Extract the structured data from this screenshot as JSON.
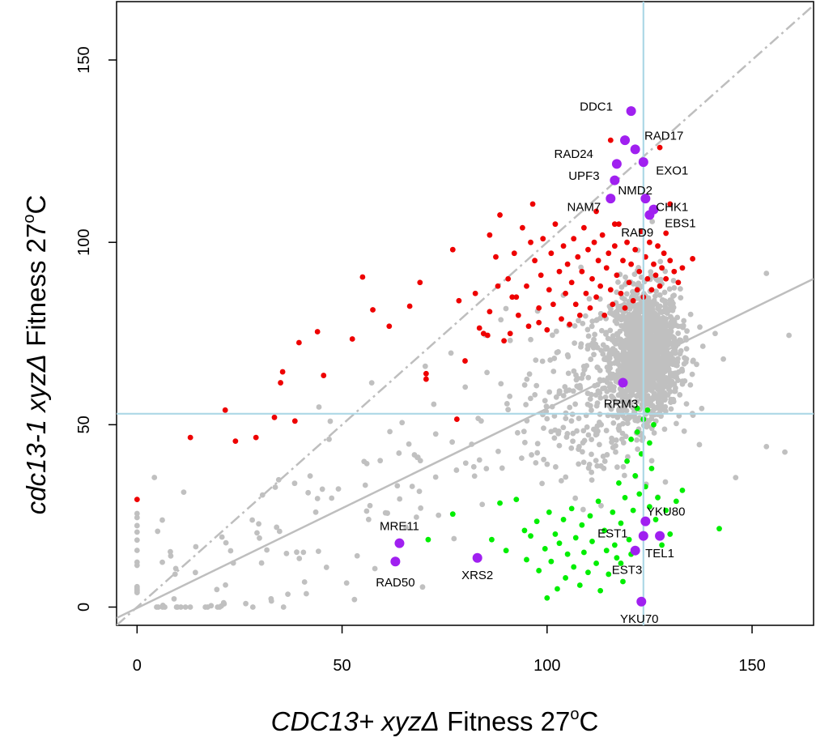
{
  "chart_data": {
    "type": "scatter",
    "xlabel": {
      "pre": "CDC13+ xyzΔ",
      "mid": " Fitness 27",
      "sup": "o",
      "post": "C"
    },
    "ylabel": {
      "pre": "cdc13-1 xyzΔ",
      "mid": " Fitness 27",
      "sup": "o",
      "post": "C"
    },
    "xlim": [
      -5,
      165
    ],
    "ylim": [
      -5,
      166
    ],
    "xticks": [
      "0",
      "50",
      "100",
      "150"
    ],
    "yticks": [
      "0",
      "50",
      "100",
      "150"
    ],
    "xtick_values": [
      0,
      50,
      100,
      150
    ],
    "ytick_values": [
      0,
      50,
      100,
      150
    ],
    "grid": false,
    "colors": {
      "background": "#c0c0c0",
      "suppressor": "#ee0000",
      "enhancer": "#00ee00",
      "highlight": "#a020f0",
      "reference_lines": "#add8e6",
      "fit_lines": "#bebebe"
    },
    "reference_lines": {
      "x": 123.5,
      "y": 53
    },
    "fit_line": {
      "x1": -5,
      "y1": -3,
      "x2": 165,
      "y2": 90
    },
    "identity_line": {
      "x1": -5,
      "y1": -5,
      "x2": 165,
      "y2": 165
    },
    "labeled_genes": [
      {
        "name": "DDC1",
        "x": 120.5,
        "y": 136,
        "lx": 112,
        "ly": 137
      },
      {
        "name": "RAD17",
        "x": 121.5,
        "y": 125.5,
        "lx": 128.5,
        "ly": 129
      },
      {
        "name": "RAD24",
        "x": 119,
        "y": 128,
        "lx": 106.5,
        "ly": 124
      },
      {
        "name": "EXO1",
        "x": 123.5,
        "y": 122,
        "lx": 130.5,
        "ly": 119.5
      },
      {
        "name": "UPF3",
        "x": 117,
        "y": 121.5,
        "lx": 109,
        "ly": 118
      },
      {
        "name": "NMD2",
        "x": 116.5,
        "y": 117,
        "lx": 121.5,
        "ly": 114
      },
      {
        "name": "NAM7",
        "x": 115.5,
        "y": 112,
        "lx": 109,
        "ly": 109.5
      },
      {
        "name": "CHK1",
        "x": 124,
        "y": 112,
        "lx": 130.5,
        "ly": 109.5
      },
      {
        "name": "EBS1",
        "x": 126,
        "y": 109,
        "lx": 132.5,
        "ly": 105
      },
      {
        "name": "RAD9",
        "x": 125,
        "y": 107.5,
        "lx": 122,
        "ly": 102.5
      },
      {
        "name": "RRM3",
        "x": 118.5,
        "y": 61.5,
        "lx": 118,
        "ly": 55.5
      },
      {
        "name": "YKU80",
        "x": 124,
        "y": 23.5,
        "lx": 129,
        "ly": 26
      },
      {
        "name": "EST1",
        "x": 123.5,
        "y": 19.5,
        "lx": 116,
        "ly": 20
      },
      {
        "name": "TEL1",
        "x": 127.5,
        "y": 19.5,
        "lx": 127.5,
        "ly": 14.5
      },
      {
        "name": "EST3",
        "x": 121.5,
        "y": 15.5,
        "lx": 119.5,
        "ly": 10
      },
      {
        "name": "YKU70",
        "x": 123,
        "y": 1.5,
        "lx": 122.5,
        "ly": -3.5
      },
      {
        "name": "MRE11",
        "x": 64,
        "y": 17.5,
        "lx": 64,
        "ly": 22
      },
      {
        "name": "RAD50",
        "x": 63,
        "y": 12.5,
        "lx": 63,
        "ly": 6.5
      },
      {
        "name": "XRS2",
        "x": 83,
        "y": 13.5,
        "lx": 83,
        "ly": 8.5
      }
    ],
    "suppressors": [
      [
        0,
        29.5
      ],
      [
        13,
        46.5
      ],
      [
        21.5,
        54
      ],
      [
        24,
        45.5
      ],
      [
        29,
        46.5
      ],
      [
        33.5,
        52
      ],
      [
        35.5,
        64.5
      ],
      [
        35,
        61.5
      ],
      [
        38.5,
        51
      ],
      [
        39.5,
        72.5
      ],
      [
        44,
        75.5
      ],
      [
        45.5,
        63.5
      ],
      [
        52.5,
        73.5
      ],
      [
        55,
        90.5
      ],
      [
        57.5,
        81.5
      ],
      [
        61.5,
        77
      ],
      [
        66.5,
        82.5
      ],
      [
        69,
        89
      ],
      [
        70.5,
        64
      ],
      [
        70.5,
        62.5
      ],
      [
        77,
        98
      ],
      [
        78,
        51.5
      ],
      [
        78.5,
        84
      ],
      [
        80,
        67.5
      ],
      [
        82.5,
        86
      ],
      [
        83.5,
        76.5
      ],
      [
        84.5,
        75
      ],
      [
        85.5,
        74.5
      ],
      [
        86,
        102
      ],
      [
        87.5,
        96
      ],
      [
        88.5,
        107.5
      ],
      [
        89.5,
        73
      ],
      [
        90.5,
        90
      ],
      [
        91.5,
        85
      ],
      [
        92,
        97
      ],
      [
        93,
        80
      ],
      [
        94,
        104
      ],
      [
        95,
        88
      ],
      [
        95.5,
        77
      ],
      [
        96.5,
        110.5
      ],
      [
        97,
        95
      ],
      [
        98,
        82
      ],
      [
        98.5,
        91
      ],
      [
        99,
        101
      ],
      [
        100,
        76
      ],
      [
        100.5,
        87
      ],
      [
        101,
        97
      ],
      [
        101.5,
        83
      ],
      [
        102,
        105
      ],
      [
        103,
        92
      ],
      [
        103.5,
        79
      ],
      [
        104,
        99
      ],
      [
        104.5,
        86
      ],
      [
        105,
        94
      ],
      [
        105.5,
        77.5
      ],
      [
        106,
        89
      ],
      [
        106.5,
        101
      ],
      [
        107,
        83
      ],
      [
        107.5,
        96
      ],
      [
        108,
        80
      ],
      [
        108.5,
        92
      ],
      [
        109,
        104
      ],
      [
        109.5,
        86
      ],
      [
        110,
        98
      ],
      [
        110.5,
        82
      ],
      [
        111,
        90
      ],
      [
        111.5,
        100
      ],
      [
        112,
        85
      ],
      [
        112.5,
        95
      ],
      [
        113,
        88
      ],
      [
        113.5,
        102
      ],
      [
        114,
        80
      ],
      [
        114.5,
        93
      ],
      [
        115,
        97
      ],
      [
        115.5,
        87
      ],
      [
        116,
        83
      ],
      [
        116.5,
        99
      ],
      [
        117,
        91
      ],
      [
        117.5,
        105
      ],
      [
        118,
        86
      ],
      [
        118.5,
        95
      ],
      [
        119,
        82
      ],
      [
        119.5,
        100
      ],
      [
        120,
        89
      ],
      [
        120.5,
        94
      ],
      [
        121,
        84
      ],
      [
        121.5,
        98
      ],
      [
        122,
        87
      ],
      [
        122.5,
        92
      ],
      [
        123,
        103
      ],
      [
        123.5,
        85
      ],
      [
        124,
        96
      ],
      [
        124.5,
        90
      ],
      [
        125,
        100
      ],
      [
        125.5,
        87
      ],
      [
        126,
        94
      ],
      [
        126.5,
        91
      ],
      [
        127,
        99
      ],
      [
        127.5,
        88
      ],
      [
        128,
        93
      ],
      [
        128.5,
        97
      ],
      [
        129,
        90
      ],
      [
        130,
        95
      ],
      [
        131,
        92
      ],
      [
        132,
        89
      ],
      [
        133,
        93
      ],
      [
        135.5,
        95.5
      ],
      [
        127.5,
        126
      ],
      [
        115.5,
        128
      ],
      [
        129,
        102.5
      ],
      [
        130,
        110.5
      ],
      [
        116.5,
        105
      ],
      [
        112,
        108.5
      ],
      [
        96,
        100
      ],
      [
        98,
        78
      ],
      [
        92.5,
        85
      ],
      [
        88,
        88
      ],
      [
        86,
        81
      ],
      [
        91,
        75
      ]
    ],
    "enhancers": [
      [
        71,
        18.5
      ],
      [
        77,
        25.5
      ],
      [
        83,
        14
      ],
      [
        86.5,
        18.5
      ],
      [
        88.5,
        28.5
      ],
      [
        90,
        15.5
      ],
      [
        92.5,
        29.5
      ],
      [
        94.5,
        21
      ],
      [
        95,
        13
      ],
      [
        96,
        19.5
      ],
      [
        97.5,
        23.5
      ],
      [
        98,
        10
      ],
      [
        99.5,
        16
      ],
      [
        100,
        2.5
      ],
      [
        100.5,
        26
      ],
      [
        101,
        12.5
      ],
      [
        102,
        20
      ],
      [
        102.5,
        5
      ],
      [
        103,
        17.5
      ],
      [
        104,
        24
      ],
      [
        104.5,
        8
      ],
      [
        105,
        14.5
      ],
      [
        106,
        27
      ],
      [
        106.5,
        11
      ],
      [
        107,
        19
      ],
      [
        108,
        6
      ],
      [
        108.5,
        22.5
      ],
      [
        109,
        15
      ],
      [
        110,
        9.5
      ],
      [
        110.5,
        25
      ],
      [
        111,
        18
      ],
      [
        112,
        12
      ],
      [
        112.5,
        29
      ],
      [
        113,
        4.5
      ],
      [
        114,
        21
      ],
      [
        114.5,
        15.5
      ],
      [
        115,
        9
      ],
      [
        116,
        26
      ],
      [
        116.5,
        17
      ],
      [
        117,
        13.5
      ],
      [
        117.5,
        34
      ],
      [
        118,
        23
      ],
      [
        118.5,
        7
      ],
      [
        119,
        30
      ],
      [
        119.5,
        40
      ],
      [
        120,
        18.5
      ],
      [
        120.5,
        46
      ],
      [
        121,
        26.5
      ],
      [
        121.5,
        36
      ],
      [
        122,
        48
      ],
      [
        122.5,
        31
      ],
      [
        123,
        42
      ],
      [
        123.5,
        51.5
      ],
      [
        124,
        33
      ],
      [
        124.5,
        54
      ],
      [
        125,
        27.5
      ],
      [
        125.5,
        38
      ],
      [
        126,
        50
      ],
      [
        126.5,
        24
      ],
      [
        127,
        30
      ],
      [
        128,
        17
      ],
      [
        129,
        26.5
      ],
      [
        130,
        20
      ],
      [
        131.5,
        29
      ],
      [
        133,
        32
      ],
      [
        142,
        21.5
      ],
      [
        125,
        45
      ],
      [
        122,
        54.5
      ],
      [
        120.5,
        14.5
      ],
      [
        118,
        12
      ]
    ]
  }
}
